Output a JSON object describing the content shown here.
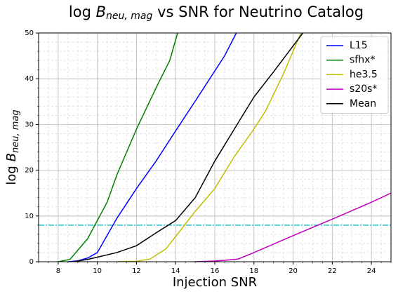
{
  "chart_data": {
    "type": "line",
    "title": {
      "prefix": "log",
      "symbol": "B",
      "subscript": "neu, mag",
      "suffix": "vs SNR for Neutrino Catalog"
    },
    "x_label": "Injection SNR",
    "y_label": {
      "prefix": "log",
      "symbol": "B",
      "subscript": "neu, mag"
    },
    "xlim": [
      7,
      25
    ],
    "xticks": [
      8,
      10,
      12,
      14,
      16,
      18,
      20,
      22,
      24
    ],
    "ylim": [
      0,
      50
    ],
    "yticks": [
      0,
      10,
      20,
      30,
      40,
      50
    ],
    "grid": true,
    "minor_grid": true,
    "legend": "upper right",
    "hline": {
      "value": 8,
      "color": "#1fbfc4"
    },
    "series": [
      {
        "name": "L15",
        "color": "#0000ff",
        "x": [
          8.5,
          9,
          9.5,
          10,
          11,
          12,
          13,
          14,
          15,
          16,
          16.5,
          17.1
        ],
        "values": [
          0,
          0.2,
          0.8,
          2,
          9.5,
          16,
          22,
          28.6,
          35.1,
          41.7,
          45,
          50
        ]
      },
      {
        "name": "sfhx*",
        "color": "#008000",
        "x": [
          8,
          8.6,
          9.5,
          10.5,
          11,
          12,
          13,
          13.7,
          14.1
        ],
        "values": [
          0,
          0.5,
          5,
          13,
          19,
          29,
          38,
          44,
          50
        ]
      },
      {
        "name": "he3.5",
        "color": "#bfbf00",
        "x": [
          11,
          12,
          12.7,
          13.5,
          14,
          15,
          16,
          17,
          18,
          18.6,
          19.5,
          20.4
        ],
        "values": [
          0,
          0.1,
          0.6,
          2.8,
          5.5,
          11,
          16,
          23,
          29,
          33,
          41,
          50
        ]
      },
      {
        "name": "s20s*",
        "color": "#bf00bf",
        "x": [
          15,
          16,
          16.5,
          17.2,
          18,
          20,
          22,
          24,
          25
        ],
        "values": [
          0,
          0.15,
          0.3,
          0.6,
          2,
          5.7,
          9.3,
          13,
          15
        ]
      },
      {
        "name": "Mean",
        "color": "#000000",
        "x": [
          8.8,
          9.5,
          10,
          11,
          12,
          13,
          14,
          15,
          16,
          17,
          18,
          19,
          20.5
        ],
        "values": [
          0,
          0.5,
          1,
          2,
          3.5,
          6.3,
          9,
          14,
          22,
          29,
          36,
          41.5,
          50
        ]
      }
    ]
  }
}
